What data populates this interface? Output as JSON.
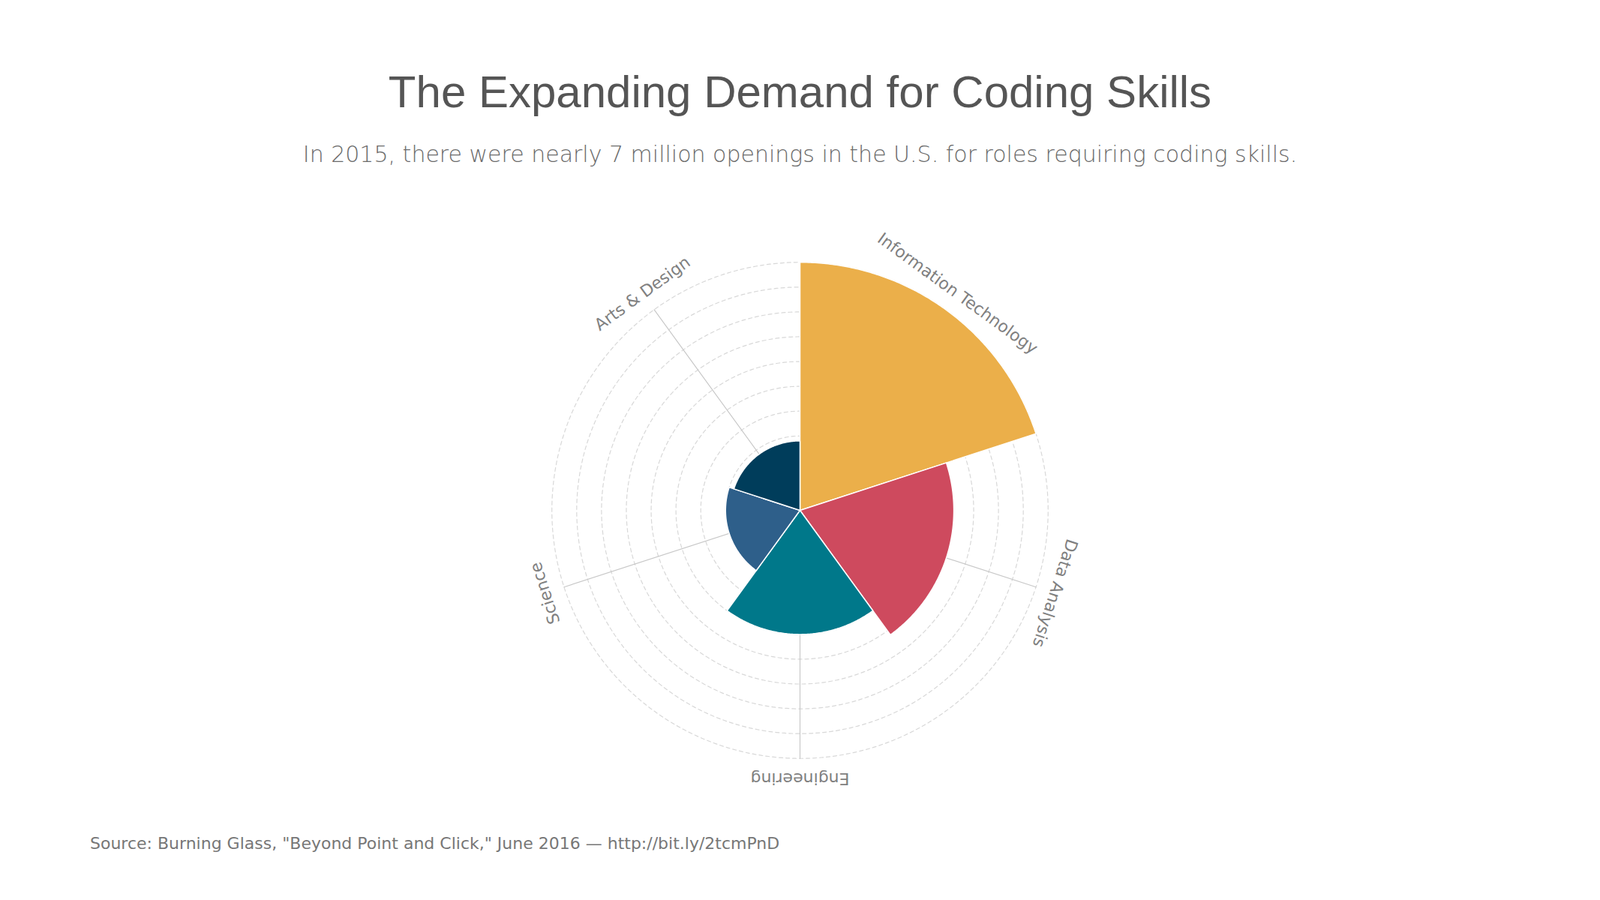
{
  "chart_data": {
    "type": "polar_area",
    "title": "The Expanding Demand for Coding Skills",
    "subtitle": "In 2015, there were nearly 7 million openings in the U.S. for roles requiring coding skills.",
    "caption": "Source: Burning Glass, \"Beyond Point and Click,\" June 2016 — http://bit.ly/2tcmPnD",
    "categories": [
      "Information Technology",
      "Data Analysis",
      "Engineering",
      "Science",
      "Arts & Design"
    ],
    "values": [
      10,
      6.2,
      5,
      3,
      2.8
    ],
    "colors": [
      "#ebaf4a",
      "#ce4a5e",
      "#00788a",
      "#2e5f8a",
      "#003d5b"
    ],
    "ylim": [
      0,
      10
    ],
    "yticks": [
      1,
      2,
      3,
      4,
      5,
      6,
      7,
      8,
      9,
      10
    ],
    "grid": true,
    "tick_labels": false
  }
}
